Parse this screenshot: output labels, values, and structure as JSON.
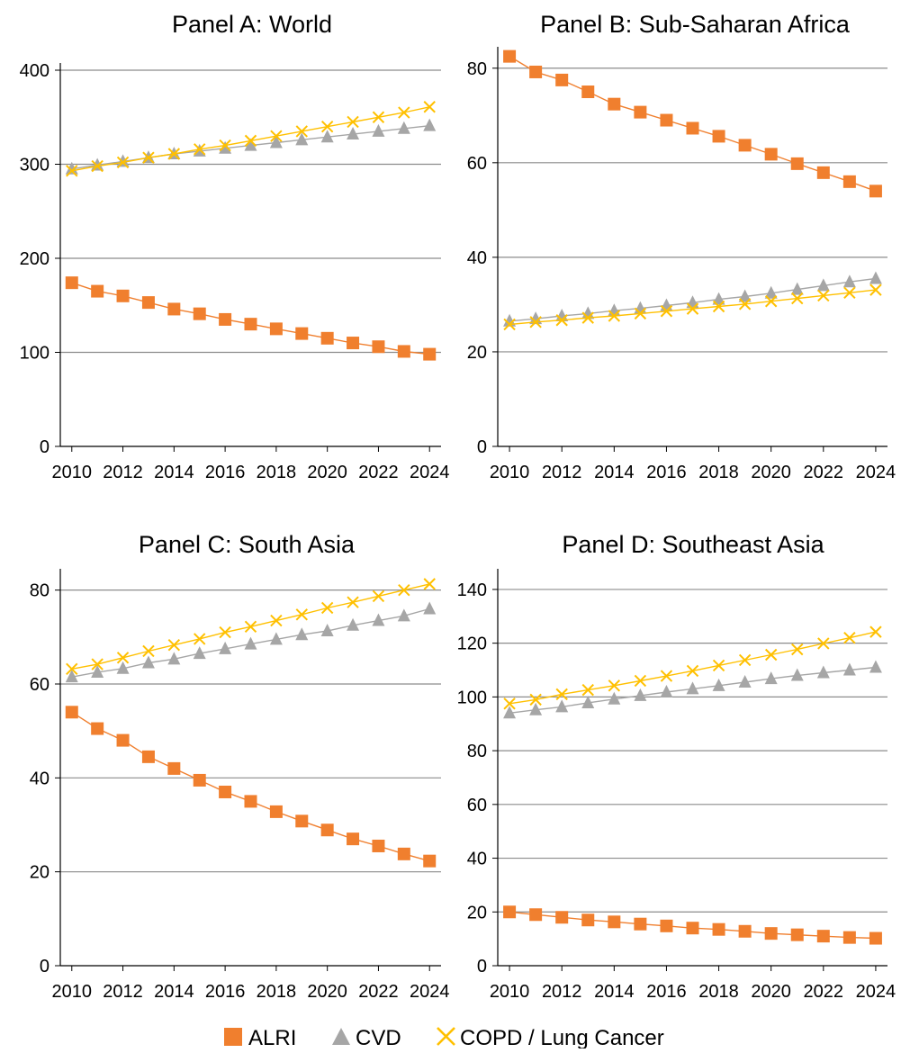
{
  "legend": {
    "items": [
      {
        "label": "ALRI",
        "marker": "square",
        "color": "#F07F2E"
      },
      {
        "label": "CVD",
        "marker": "triangle",
        "color": "#A6A6A6"
      },
      {
        "label": "COPD / Lung Cancer",
        "marker": "x",
        "color": "#FFC000"
      }
    ]
  },
  "chart_data": [
    {
      "type": "line",
      "title": "Panel A: World",
      "xlabel": "",
      "ylabel": "",
      "x": [
        2010,
        2011,
        2012,
        2013,
        2014,
        2015,
        2016,
        2017,
        2018,
        2019,
        2020,
        2021,
        2022,
        2023,
        2024
      ],
      "xticks": [
        2010,
        2012,
        2014,
        2016,
        2018,
        2020,
        2022,
        2024
      ],
      "ylim": [
        0,
        400
      ],
      "yticks": [
        0,
        100,
        200,
        300,
        400
      ],
      "grid": true,
      "series": [
        {
          "name": "ALRI",
          "marker": "square",
          "color": "#F07F2E",
          "values": [
            174,
            165,
            160,
            153,
            146,
            141,
            135,
            130,
            125,
            120,
            115,
            110,
            106,
            101,
            98
          ]
        },
        {
          "name": "CVD",
          "marker": "triangle",
          "color": "#A6A6A6",
          "values": [
            295,
            299,
            303,
            307,
            311,
            314,
            317,
            320,
            323,
            326,
            329,
            332,
            335,
            338,
            341
          ]
        },
        {
          "name": "COPD / Lung Cancer",
          "marker": "x",
          "color": "#FFC000",
          "values": [
            293,
            298,
            302,
            307,
            311,
            316,
            320,
            325,
            330,
            335,
            340,
            345,
            350,
            355,
            361
          ]
        }
      ]
    },
    {
      "type": "line",
      "title": "Panel B: Sub-Saharan Africa",
      "xlabel": "",
      "ylabel": "",
      "x": [
        2010,
        2011,
        2012,
        2013,
        2014,
        2015,
        2016,
        2017,
        2018,
        2019,
        2020,
        2021,
        2022,
        2023,
        2024
      ],
      "xticks": [
        2010,
        2012,
        2014,
        2016,
        2018,
        2020,
        2022,
        2024
      ],
      "ylim": [
        0,
        83
      ],
      "yticks": [
        0,
        20,
        40,
        60,
        80
      ],
      "grid": true,
      "series": [
        {
          "name": "ALRI",
          "marker": "square",
          "color": "#F07F2E",
          "values": [
            82.5,
            79.2,
            77.5,
            75.0,
            72.4,
            70.7,
            69.0,
            67.3,
            65.6,
            63.7,
            61.8,
            59.8,
            57.9,
            56.0,
            54.0
          ]
        },
        {
          "name": "CVD",
          "marker": "triangle",
          "color": "#A6A6A6",
          "values": [
            26.5,
            27.0,
            27.6,
            28.1,
            28.7,
            29.2,
            29.8,
            30.4,
            31.1,
            31.7,
            32.4,
            33.2,
            34.0,
            34.8,
            35.5
          ]
        },
        {
          "name": "COPD / Lung Cancer",
          "marker": "x",
          "color": "#FFC000",
          "values": [
            25.8,
            26.3,
            26.7,
            27.2,
            27.6,
            28.1,
            28.6,
            29.1,
            29.6,
            30.1,
            30.7,
            31.3,
            31.9,
            32.5,
            33.1
          ]
        }
      ]
    },
    {
      "type": "line",
      "title": "Panel C: South Asia",
      "xlabel": "",
      "ylabel": "",
      "x": [
        2010,
        2011,
        2012,
        2013,
        2014,
        2015,
        2016,
        2017,
        2018,
        2019,
        2020,
        2021,
        2022,
        2023,
        2024
      ],
      "xticks": [
        2010,
        2012,
        2014,
        2016,
        2018,
        2020,
        2022,
        2024
      ],
      "ylim": [
        0,
        83
      ],
      "yticks": [
        0,
        20,
        40,
        60,
        80
      ],
      "grid": true,
      "series": [
        {
          "name": "ALRI",
          "marker": "square",
          "color": "#F07F2E",
          "values": [
            54.0,
            50.5,
            48.0,
            44.5,
            42.0,
            39.5,
            37.0,
            35.0,
            32.8,
            30.8,
            28.9,
            27.0,
            25.5,
            23.8,
            22.3
          ]
        },
        {
          "name": "CVD",
          "marker": "triangle",
          "color": "#A6A6A6",
          "values": [
            61.5,
            62.5,
            63.3,
            64.5,
            65.3,
            66.5,
            67.5,
            68.5,
            69.5,
            70.5,
            71.3,
            72.5,
            73.5,
            74.5,
            76.0
          ]
        },
        {
          "name": "COPD / Lung Cancer",
          "marker": "x",
          "color": "#FFC000",
          "values": [
            63.2,
            64.2,
            65.6,
            67.0,
            68.3,
            69.6,
            71.0,
            72.2,
            73.5,
            74.8,
            76.2,
            77.4,
            78.7,
            80.0,
            81.3
          ]
        }
      ]
    },
    {
      "type": "line",
      "title": "Panel D: Southeast Asia",
      "xlabel": "",
      "ylabel": "",
      "x": [
        2010,
        2011,
        2012,
        2013,
        2014,
        2015,
        2016,
        2017,
        2018,
        2019,
        2020,
        2021,
        2022,
        2023,
        2024
      ],
      "xticks": [
        2010,
        2012,
        2014,
        2016,
        2018,
        2020,
        2022,
        2024
      ],
      "ylim": [
        0,
        145
      ],
      "yticks": [
        0,
        20,
        40,
        60,
        80,
        100,
        120,
        140
      ],
      "grid": true,
      "series": [
        {
          "name": "ALRI",
          "marker": "square",
          "color": "#F07F2E",
          "values": [
            20.0,
            19.0,
            18.0,
            17.0,
            16.3,
            15.5,
            14.8,
            14.0,
            13.5,
            12.8,
            12.0,
            11.5,
            11.0,
            10.5,
            10.2
          ]
        },
        {
          "name": "CVD",
          "marker": "triangle",
          "color": "#A6A6A6",
          "values": [
            94.0,
            95.2,
            96.3,
            97.8,
            99.2,
            100.5,
            101.8,
            103.0,
            104.2,
            105.5,
            106.8,
            108.0,
            109.0,
            110.0,
            111.0
          ]
        },
        {
          "name": "COPD / Lung Cancer",
          "marker": "x",
          "color": "#FFC000",
          "values": [
            97.5,
            99.0,
            101.0,
            102.6,
            104.2,
            106.0,
            107.8,
            109.7,
            111.7,
            113.7,
            115.7,
            117.7,
            119.9,
            122.0,
            124.2
          ]
        }
      ]
    }
  ]
}
